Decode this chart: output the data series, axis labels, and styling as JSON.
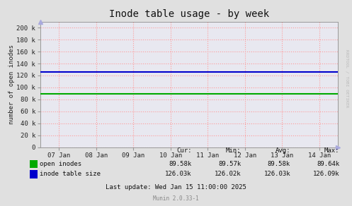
{
  "title": "Inode table usage - by week",
  "ylabel": "number of open inodes",
  "background_color": "#e0e0e0",
  "plot_bg_color": "#e8e8f0",
  "grid_color": "#ff9999",
  "grid_color_v": "#aaaacc",
  "x_labels": [
    "07 Jan",
    "08 Jan",
    "09 Jan",
    "10 Jan",
    "11 Jan",
    "12 Jan",
    "13 Jan",
    "14 Jan"
  ],
  "x_ticks": [
    0,
    1,
    2,
    3,
    4,
    5,
    6,
    7
  ],
  "ylim": [
    0,
    210000
  ],
  "yticks": [
    0,
    20000,
    40000,
    60000,
    80000,
    100000,
    120000,
    140000,
    160000,
    180000,
    200000
  ],
  "ytick_labels": [
    "0",
    "20 k",
    "40 k",
    "60 k",
    "80 k",
    "100 k",
    "120 k",
    "140 k",
    "160 k",
    "180 k",
    "200 k"
  ],
  "green_line_value": 89580,
  "blue_line_value": 126030,
  "green_color": "#00aa00",
  "blue_color": "#0000cc",
  "legend_items": [
    {
      "label": "open inodes",
      "color": "#00aa00"
    },
    {
      "label": "inode table size",
      "color": "#0000cc"
    }
  ],
  "stats_header": [
    "Cur:",
    "Min:",
    "Avg:",
    "Max:"
  ],
  "stats_row1": [
    "89.58k",
    "89.57k",
    "89.58k",
    "89.64k"
  ],
  "stats_row2": [
    "126.03k",
    "126.02k",
    "126.03k",
    "126.09k"
  ],
  "last_update": "Last update: Wed Jan 15 11:00:00 2025",
  "munin_label": "Munin 2.0.33-1",
  "watermark": "RRDTOOL / TOBI OETIKER",
  "title_fontsize": 10,
  "axis_fontsize": 6.5,
  "legend_fontsize": 6.5,
  "stats_fontsize": 6.5
}
